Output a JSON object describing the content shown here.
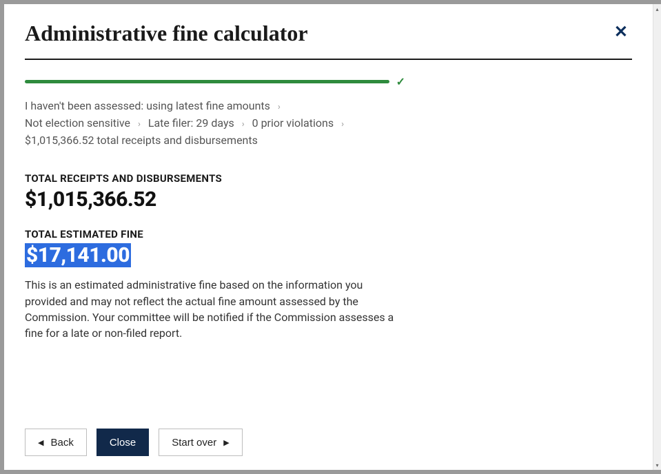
{
  "colors": {
    "progress_fill": "#2e8b3d",
    "highlight_bg": "#2d6cdf",
    "primary_btn_bg": "#11294a",
    "primary_btn_fg": "#ffffff",
    "close_icon": "#0b2e5c"
  },
  "modal": {
    "title": "Administrative fine calculator"
  },
  "progress": {
    "percent": 60,
    "complete_glyph": "✓"
  },
  "breadcrumbs": {
    "items": [
      "I haven't been assessed: using latest fine amounts",
      "Not election sensitive",
      "Late filer: 29 days",
      "0 prior violations",
      "$1,015,366.52 total receipts and disbursements"
    ],
    "separator": "›"
  },
  "receipts": {
    "label": "TOTAL RECEIPTS AND DISBURSEMENTS",
    "amount": "$1,015,366.52"
  },
  "fine": {
    "label": "TOTAL ESTIMATED FINE",
    "amount": "$17,141.00"
  },
  "disclaimer": "This is an estimated administrative fine based on the information you provided and may not reflect the actual fine amount assessed by the Commission. Your committee will be notified if the Commission assesses a fine for a late or non-filed report.",
  "footer": {
    "back": "Back",
    "close": "Close",
    "start_over": "Start over"
  },
  "scrollbar": {
    "up_glyph": "▴",
    "down_glyph": "▾"
  }
}
